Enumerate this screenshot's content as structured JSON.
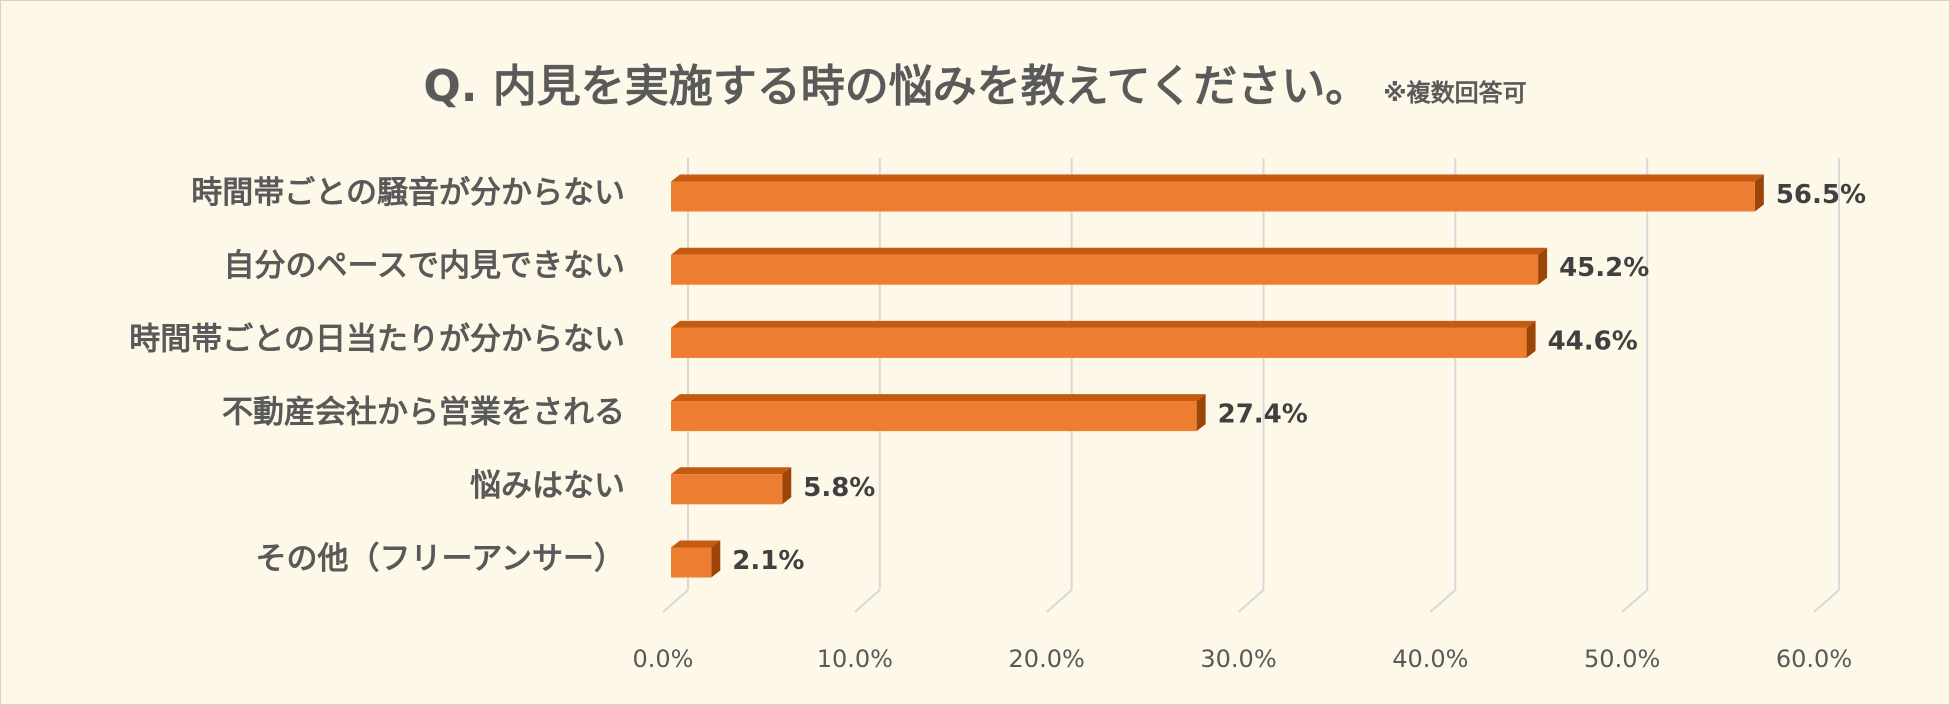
{
  "title": "Q. 内見を実施する時の悩みを教えてください。",
  "title_note": "※複数回答可",
  "colors": {
    "background": "#fdf8e7",
    "bar_front": "#ed7d31",
    "bar_top": "#c55a11",
    "bar_side": "#9c4509",
    "grid": "#d9d9d9",
    "text": "#404040"
  },
  "chart_data": {
    "type": "bar",
    "orientation": "horizontal",
    "style": "3d",
    "categories": [
      "時間帯ごとの騒音が分からない",
      "自分のペースで内見できない",
      "時間帯ごとの日当たりが分からない",
      "不動産会社から営業をされる",
      "悩みはない",
      "その他（フリーアンサー）"
    ],
    "values": [
      56.5,
      45.2,
      44.6,
      27.4,
      5.8,
      2.1
    ],
    "value_labels": [
      "56.5%",
      "45.2%",
      "44.6%",
      "27.4%",
      "5.8%",
      "2.1%"
    ],
    "xlim": [
      0,
      60
    ],
    "xticks": [
      0,
      10,
      20,
      30,
      40,
      50,
      60
    ],
    "xtick_labels": [
      "0.0%",
      "10.0%",
      "20.0%",
      "30.0%",
      "40.0%",
      "50.0%",
      "60.0%"
    ],
    "grid": true,
    "legend": false
  }
}
